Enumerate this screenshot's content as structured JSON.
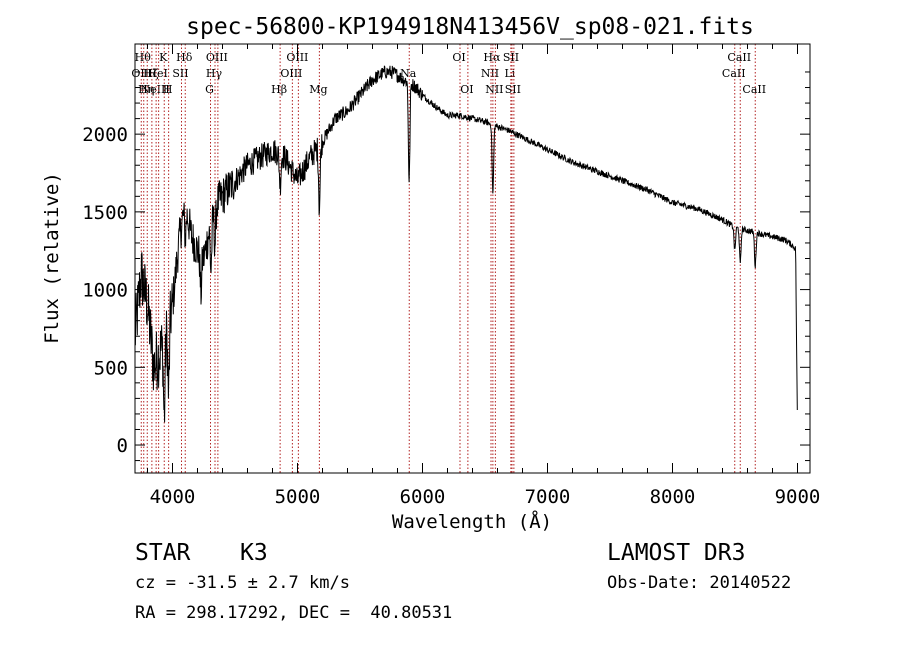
{
  "chart_data": {
    "type": "line",
    "title": "spec-56800-KP194918N413456V_sp08-021.fits",
    "xlabel": "Wavelength (Å)",
    "ylabel": "Flux (relative)",
    "xlim": [
      3700,
      9100
    ],
    "ylim": [
      -180,
      2580
    ],
    "xticks": [
      4000,
      5000,
      6000,
      7000,
      8000,
      9000
    ],
    "yticks": [
      0,
      500,
      1000,
      1500,
      2000
    ],
    "spectrum_anchors": {
      "x": [
        3700,
        3750,
        3800,
        3850,
        3900,
        3950,
        4000,
        4050,
        4100,
        4150,
        4200,
        4250,
        4300,
        4350,
        4400,
        4450,
        4500,
        4600,
        4700,
        4800,
        4900,
        5000,
        5100,
        5200,
        5300,
        5400,
        5500,
        5600,
        5700,
        5750,
        5800,
        5850,
        5900,
        5950,
        6000,
        6100,
        6200,
        6300,
        6400,
        6500,
        6600,
        6700,
        6800,
        7000,
        7200,
        7400,
        7600,
        7800,
        8000,
        8200,
        8400,
        8500,
        8600,
        8700,
        8800,
        8900,
        8950,
        9000
      ],
      "y": [
        700,
        1100,
        900,
        500,
        600,
        700,
        900,
        1300,
        1550,
        1350,
        1250,
        1200,
        1400,
        1550,
        1600,
        1650,
        1700,
        1800,
        1850,
        1900,
        1850,
        1700,
        1850,
        1950,
        2100,
        2150,
        2250,
        2350,
        2400,
        2400,
        2380,
        2350,
        2330,
        2300,
        2250,
        2180,
        2120,
        2120,
        2100,
        2080,
        2050,
        2020,
        1980,
        1900,
        1820,
        1760,
        1700,
        1640,
        1560,
        1520,
        1450,
        1400,
        1380,
        1360,
        1340,
        1320,
        1290,
        1250
      ]
    },
    "absorption_features": [
      {
        "x": 3934,
        "depth": 500
      },
      {
        "x": 3969,
        "depth": 450
      },
      {
        "x": 4102,
        "depth": 200
      },
      {
        "x": 4227,
        "depth": 250
      },
      {
        "x": 4308,
        "depth": 300
      },
      {
        "x": 4340,
        "depth": 220
      },
      {
        "x": 4861,
        "depth": 200
      },
      {
        "x": 5175,
        "depth": 400
      },
      {
        "x": 5893,
        "depth": 650
      },
      {
        "x": 6563,
        "depth": 450
      },
      {
        "x": 8498,
        "depth": 150
      },
      {
        "x": 8542,
        "depth": 230
      },
      {
        "x": 8662,
        "depth": 220
      }
    ],
    "line_markers": [
      {
        "x": 3750,
        "label": "OII",
        "row": 1
      },
      {
        "x": 3770,
        "label": "Hθ",
        "row": 0
      },
      {
        "x": 3798,
        "label": "Hη",
        "row": 2
      },
      {
        "x": 3835,
        "label": "Hζ",
        "row": 1
      },
      {
        "x": 3869,
        "label": "NeIII",
        "row": 2
      },
      {
        "x": 3889,
        "label": "HeI",
        "row": 1
      },
      {
        "x": 3934,
        "label": "K",
        "row": 0
      },
      {
        "x": 3969,
        "label": "H",
        "row": 2
      },
      {
        "x": 4072,
        "label": "SII",
        "row": 1
      },
      {
        "x": 4102,
        "label": "Hδ",
        "row": 0
      },
      {
        "x": 4304,
        "label": "G",
        "row": 2
      },
      {
        "x": 4340,
        "label": "Hγ",
        "row": 1
      },
      {
        "x": 4363,
        "label": "OIII",
        "row": 0
      },
      {
        "x": 4861,
        "label": "Hβ",
        "row": 2
      },
      {
        "x": 4959,
        "label": "OIII",
        "row": 1
      },
      {
        "x": 5007,
        "label": "OIII",
        "row": 0
      },
      {
        "x": 5175,
        "label": "Mg",
        "row": 2
      },
      {
        "x": 5894,
        "label": "Na",
        "row": 1
      },
      {
        "x": 6300,
        "label": "OI",
        "row": 0
      },
      {
        "x": 6363,
        "label": "OI",
        "row": 2
      },
      {
        "x": 6548,
        "label": "NII",
        "row": 1
      },
      {
        "x": 6563,
        "label": "Hα",
        "row": 0
      },
      {
        "x": 6583,
        "label": "NII",
        "row": 2
      },
      {
        "x": 6707,
        "label": "Li",
        "row": 1
      },
      {
        "x": 6716,
        "label": "SII",
        "row": 0
      },
      {
        "x": 6731,
        "label": "SII",
        "row": 2
      },
      {
        "x": 8498,
        "label": "CaII",
        "row": 1
      },
      {
        "x": 8542,
        "label": "CaII",
        "row": 0
      },
      {
        "x": 8662,
        "label": "CaII",
        "row": 2
      }
    ]
  },
  "info": {
    "class": "STAR",
    "subclass": "K3",
    "survey": "LAMOST DR3",
    "cz": "cz = -31.5 ± 2.7 km/s",
    "obs_date": "Obs-Date: 20140522",
    "coords": "RA = 298.17292, DEC =  40.80531"
  },
  "colors": {
    "line": "#000000",
    "marker": "#b22222",
    "axis": "#000000"
  }
}
